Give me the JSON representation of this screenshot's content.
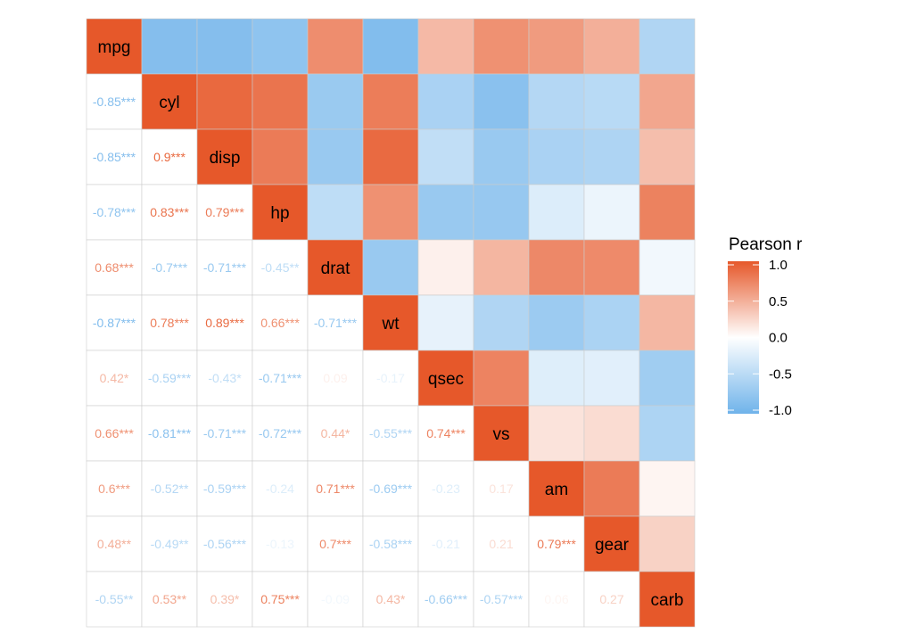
{
  "chart_data": {
    "type": "heatmap",
    "title": "",
    "xlabel": "",
    "ylabel": "",
    "variables": [
      "mpg",
      "cyl",
      "disp",
      "hp",
      "drat",
      "wt",
      "qsec",
      "vs",
      "am",
      "gear",
      "carb"
    ],
    "matrix": [
      [
        1.0,
        -0.85,
        -0.85,
        -0.78,
        0.68,
        -0.87,
        0.42,
        0.66,
        0.6,
        0.48,
        -0.55
      ],
      [
        -0.85,
        1.0,
        0.9,
        0.83,
        -0.7,
        0.78,
        -0.59,
        -0.81,
        -0.52,
        -0.49,
        0.53
      ],
      [
        -0.85,
        0.9,
        1.0,
        0.79,
        -0.71,
        0.89,
        -0.43,
        -0.71,
        -0.59,
        -0.56,
        0.39
      ],
      [
        -0.78,
        0.83,
        0.79,
        1.0,
        -0.45,
        0.66,
        -0.71,
        -0.72,
        -0.24,
        -0.13,
        0.75
      ],
      [
        0.68,
        -0.7,
        -0.71,
        -0.45,
        1.0,
        -0.71,
        0.09,
        0.44,
        0.71,
        0.7,
        -0.09
      ],
      [
        -0.87,
        0.78,
        0.89,
        0.66,
        -0.71,
        1.0,
        -0.17,
        -0.55,
        -0.69,
        -0.58,
        0.43
      ],
      [
        0.42,
        -0.59,
        -0.43,
        -0.71,
        0.09,
        -0.17,
        1.0,
        0.74,
        -0.23,
        -0.21,
        -0.66
      ],
      [
        0.66,
        -0.81,
        -0.71,
        -0.72,
        0.44,
        -0.55,
        0.74,
        1.0,
        0.17,
        0.21,
        -0.57
      ],
      [
        0.6,
        -0.52,
        -0.59,
        -0.24,
        0.71,
        -0.69,
        -0.23,
        0.17,
        1.0,
        0.79,
        0.06
      ],
      [
        0.48,
        -0.49,
        -0.56,
        -0.13,
        0.7,
        -0.58,
        -0.21,
        0.21,
        0.79,
        1.0,
        0.27
      ],
      [
        -0.55,
        0.53,
        0.39,
        0.75,
        -0.09,
        0.43,
        -0.66,
        -0.57,
        0.06,
        0.27,
        1.0
      ]
    ],
    "lower_labels": [
      [
        "-0.85***"
      ],
      [
        "-0.85***",
        "0.9***"
      ],
      [
        "-0.78***",
        "0.83***",
        "0.79***"
      ],
      [
        "0.68***",
        "-0.7***",
        "-0.71***",
        "-0.45**"
      ],
      [
        "-0.87***",
        "0.78***",
        "0.89***",
        "0.66***",
        "-0.71***"
      ],
      [
        "0.42*",
        "-0.59***",
        "-0.43*",
        "-0.71***",
        "0.09",
        "-0.17"
      ],
      [
        "0.66***",
        "-0.81***",
        "-0.71***",
        "-0.72***",
        "0.44*",
        "-0.55***",
        "0.74***"
      ],
      [
        "0.6***",
        "-0.52**",
        "-0.59***",
        "-0.24",
        "0.71***",
        "-0.69***",
        "-0.23",
        "0.17"
      ],
      [
        "0.48**",
        "-0.49**",
        "-0.56***",
        "-0.13",
        "0.7***",
        "-0.58***",
        "-0.21",
        "0.21",
        "0.79***"
      ],
      [
        "-0.55**",
        "0.53**",
        "0.39*",
        "0.75***",
        "-0.09",
        "0.43*",
        "-0.66***",
        "-0.57***",
        "0.06",
        "0.27"
      ]
    ],
    "color_scale": {
      "low": "#6fb3ea",
      "mid": "#ffffff",
      "high": "#e6582a",
      "domain": [
        -1,
        1
      ]
    },
    "legend": {
      "title": "Pearson r",
      "ticks": [
        "1.0",
        "0.5",
        "0.0",
        "-0.5",
        "-1.0"
      ],
      "tick_values": [
        1,
        0.5,
        0,
        -0.5,
        -1
      ],
      "placement": "right"
    },
    "grid_color": "#cccccc"
  }
}
